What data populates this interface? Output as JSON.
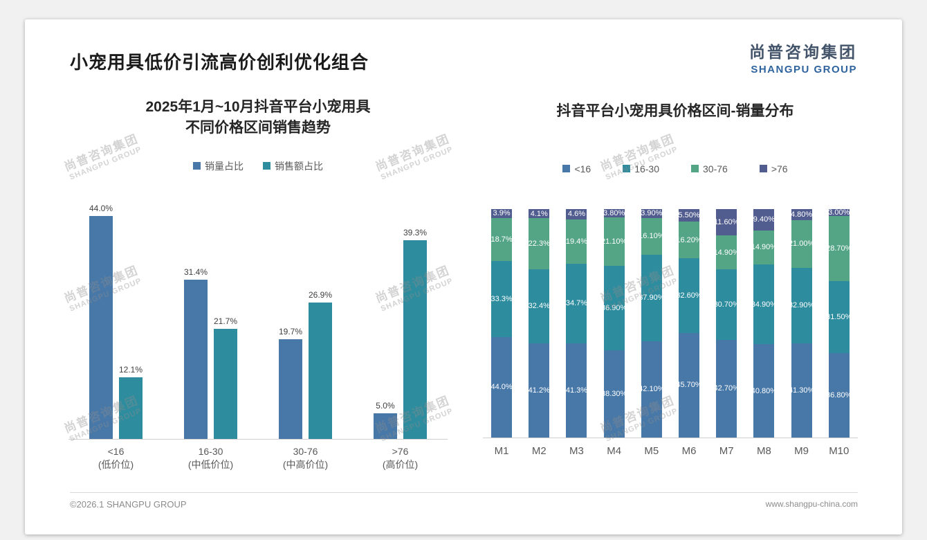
{
  "page": {
    "slide_title": "小宠用具低价引流高价创利优化组合",
    "footer_left": "©2026.1 SHANGPU GROUP",
    "footer_right": "www.shangpu-china.com"
  },
  "logo": {
    "cn": "尚普咨询集团",
    "en": "SHANGPU GROUP"
  },
  "watermark": {
    "cn": "尚普咨询集团",
    "en": "SHANGPU GROUP"
  },
  "colors": {
    "series_blue": "#4878a8",
    "series_teal": "#2d8c9e",
    "series_green": "#54a486",
    "series_dark": "#525d8f"
  },
  "chart_data": [
    {
      "type": "bar",
      "title_lines": [
        "2025年1月~10月抖音平台小宠用具",
        "不同价格区间销售趋势"
      ],
      "categories": [
        "<16",
        "16-30",
        "30-76",
        ">76"
      ],
      "category_sublabels": [
        "(低价位)",
        "(中低价位)",
        "(中高价位)",
        "(高价位)"
      ],
      "series": [
        {
          "name": "销量占比",
          "color_key": "series_blue",
          "values": [
            44.0,
            31.4,
            19.7,
            5.0
          ],
          "labels": [
            "44.0%",
            "31.4%",
            "19.7%",
            "5.0%"
          ]
        },
        {
          "name": "销售额占比",
          "color_key": "series_teal",
          "values": [
            12.1,
            21.7,
            26.9,
            39.3
          ],
          "labels": [
            "12.1%",
            "21.7%",
            "26.9%",
            "39.3%"
          ]
        }
      ],
      "ylim": [
        0,
        45
      ],
      "grid": false,
      "legend_position": "top"
    },
    {
      "type": "stacked-bar-100",
      "title": "抖音平台小宠用具价格区间-销量分布",
      "categories": [
        "M1",
        "M2",
        "M3",
        "M4",
        "M5",
        "M6",
        "M7",
        "M8",
        "M9",
        "M10"
      ],
      "series": [
        {
          "name": "<16",
          "color_key": "series_blue",
          "values": [
            44.0,
            41.2,
            41.3,
            38.3,
            42.1,
            45.7,
            42.7,
            40.8,
            41.3,
            36.8
          ],
          "labels": [
            "44.0%",
            "41.2%",
            "41.3%",
            "38.30%",
            "42.10%",
            "45.70%",
            "42.70%",
            "40.80%",
            "41.30%",
            "36.80%"
          ]
        },
        {
          "name": "16-30",
          "color_key": "series_teal",
          "values": [
            33.3,
            32.4,
            34.7,
            36.9,
            37.9,
            32.6,
            30.7,
            34.9,
            32.9,
            31.5
          ],
          "labels": [
            "33.3%",
            "32.4%",
            "34.7%",
            "36.90%",
            "37.90%",
            "32.60%",
            "30.70%",
            "34.90%",
            "32.90%",
            "31.50%"
          ]
        },
        {
          "name": "30-76",
          "color_key": "series_green",
          "values": [
            18.7,
            22.3,
            19.4,
            21.1,
            16.1,
            16.2,
            14.9,
            14.9,
            21.0,
            28.7
          ],
          "labels": [
            "18.7%",
            "22.3%",
            "19.4%",
            "21.10%",
            "16.10%",
            "16.20%",
            "14.90%",
            "14.90%",
            "21.00%",
            "28.70%"
          ]
        },
        {
          "name": ">76",
          "color_key": "series_dark",
          "values": [
            3.9,
            4.1,
            4.6,
            3.8,
            3.9,
            5.5,
            11.6,
            9.4,
            4.8,
            3.0
          ],
          "labels": [
            "3.9%",
            "4.1%",
            "4.6%",
            "3.80%",
            "3.90%",
            "5.50%",
            "11.60%",
            "9.40%",
            "4.80%",
            "3.00%"
          ]
        }
      ],
      "ylim": [
        0,
        100
      ],
      "grid": false,
      "legend_position": "top"
    }
  ]
}
